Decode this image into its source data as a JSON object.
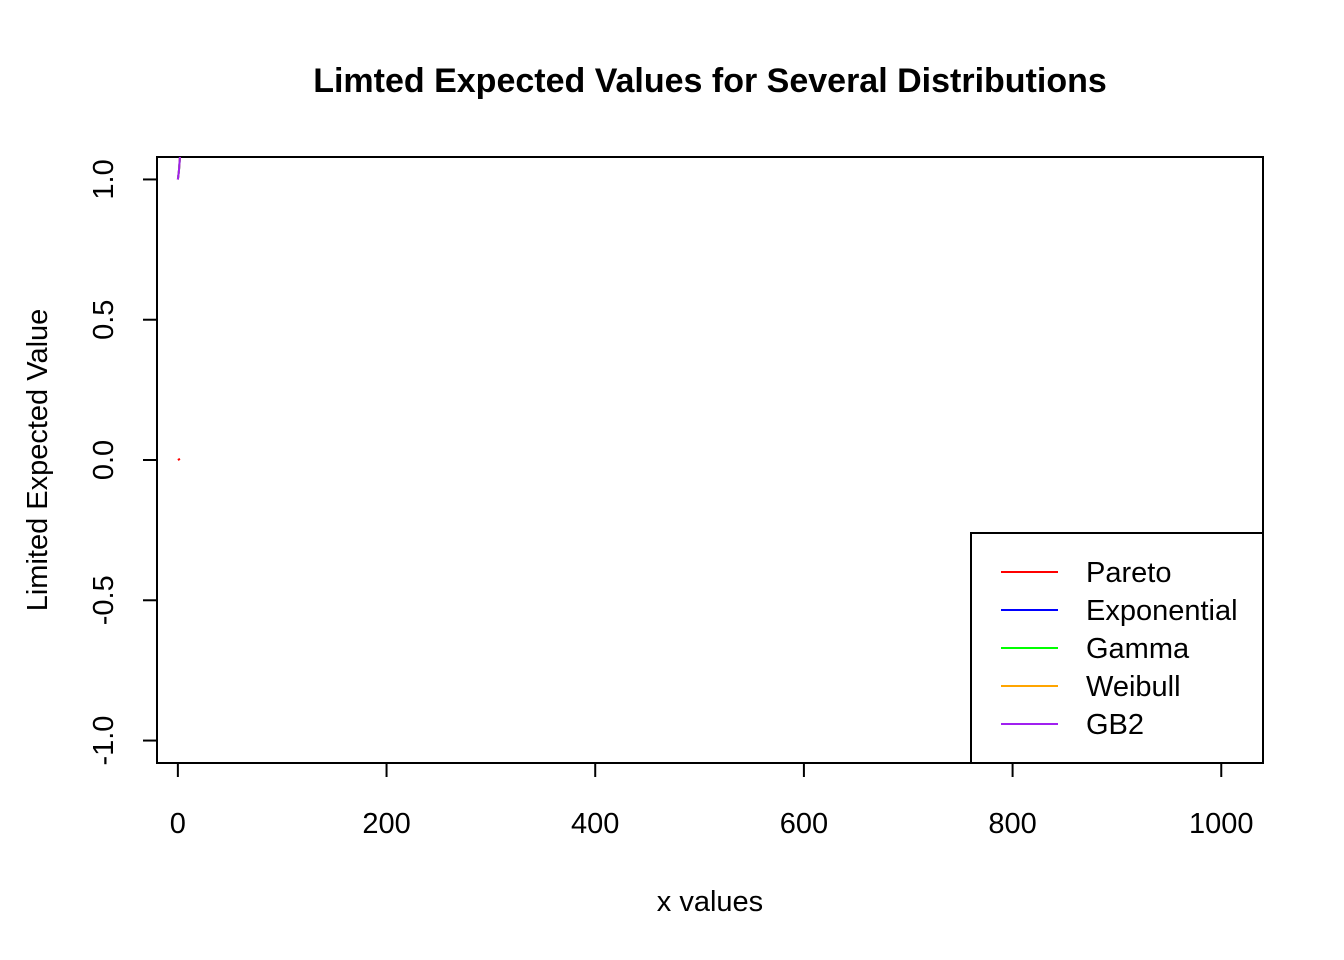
{
  "chart_data": {
    "type": "line",
    "title": "Limted Expected Values for Several Distributions",
    "xlabel": "x values",
    "ylabel": "Limited Expected Value",
    "xlim": [
      -20,
      1040
    ],
    "ylim": [
      -1.08,
      1.08
    ],
    "x_ticks": [
      0,
      200,
      400,
      600,
      800,
      1000
    ],
    "x_tick_labels": [
      "0",
      "200",
      "400",
      "600",
      "800",
      "1000"
    ],
    "y_ticks": [
      -1.0,
      -0.5,
      0.0,
      0.5,
      1.0
    ],
    "y_tick_labels": [
      "-1.0",
      "-0.5",
      "0.0",
      "0.5",
      "1.0"
    ],
    "grid": false,
    "legend_position": "bottom-right",
    "series": [
      {
        "name": "Pareto",
        "color": "#ff0000",
        "x": [
          0,
          1,
          2
        ],
        "y": [
          0.0,
          0.002,
          0.004
        ]
      },
      {
        "name": "Exponential",
        "color": "#0000ff",
        "x": [
          0,
          1,
          2
        ],
        "y": [
          1.0,
          1.03,
          1.08
        ]
      },
      {
        "name": "Gamma",
        "color": "#00ff00",
        "x": [
          0,
          1,
          2
        ],
        "y": [
          1.0,
          1.03,
          1.08
        ]
      },
      {
        "name": "Weibull",
        "color": "#ffa500",
        "x": [
          0,
          1,
          2
        ],
        "y": [
          1.0,
          1.03,
          1.08
        ]
      },
      {
        "name": "GB2",
        "color": "#a020f0",
        "x": [
          0,
          1,
          2
        ],
        "y": [
          1.0,
          1.03,
          1.08
        ]
      }
    ]
  }
}
